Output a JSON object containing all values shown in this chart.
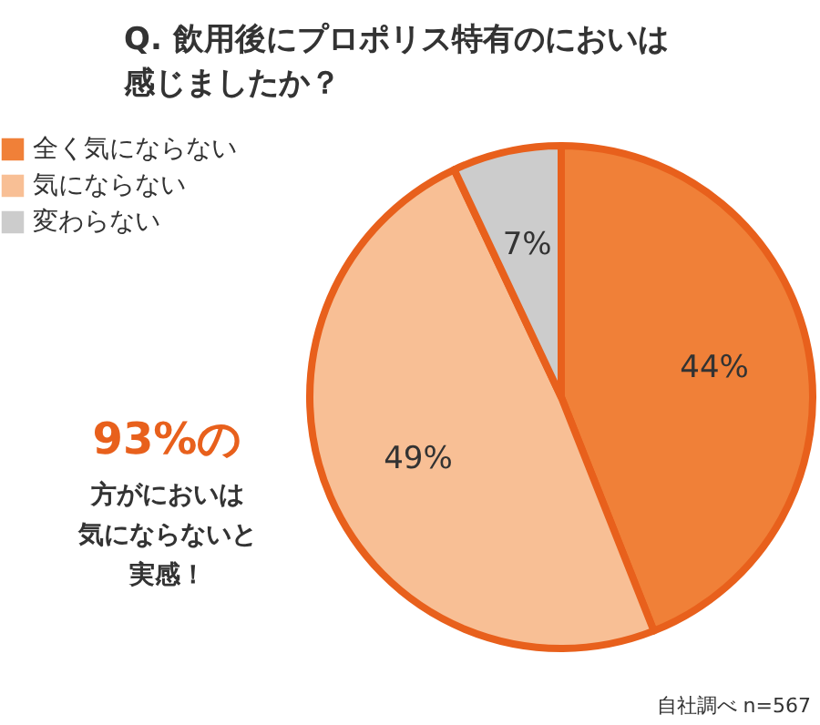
{
  "chart_data": {
    "type": "pie",
    "title": "Q. 飲用後にプロポリス特有のにおいは感じましたか？",
    "categories": [
      "全く気にならない",
      "気にならない",
      "変わらない"
    ],
    "values": [
      44,
      49,
      7
    ],
    "colors": [
      "#f08038",
      "#f8bf95",
      "#cccccc"
    ],
    "value_labels": [
      "44%",
      "49%",
      "7%"
    ],
    "legend": "top left",
    "annotations": [
      "93%の",
      "方がにおいは",
      "気にならないと",
      "実感！",
      "自社調べ n=567"
    ]
  }
}
